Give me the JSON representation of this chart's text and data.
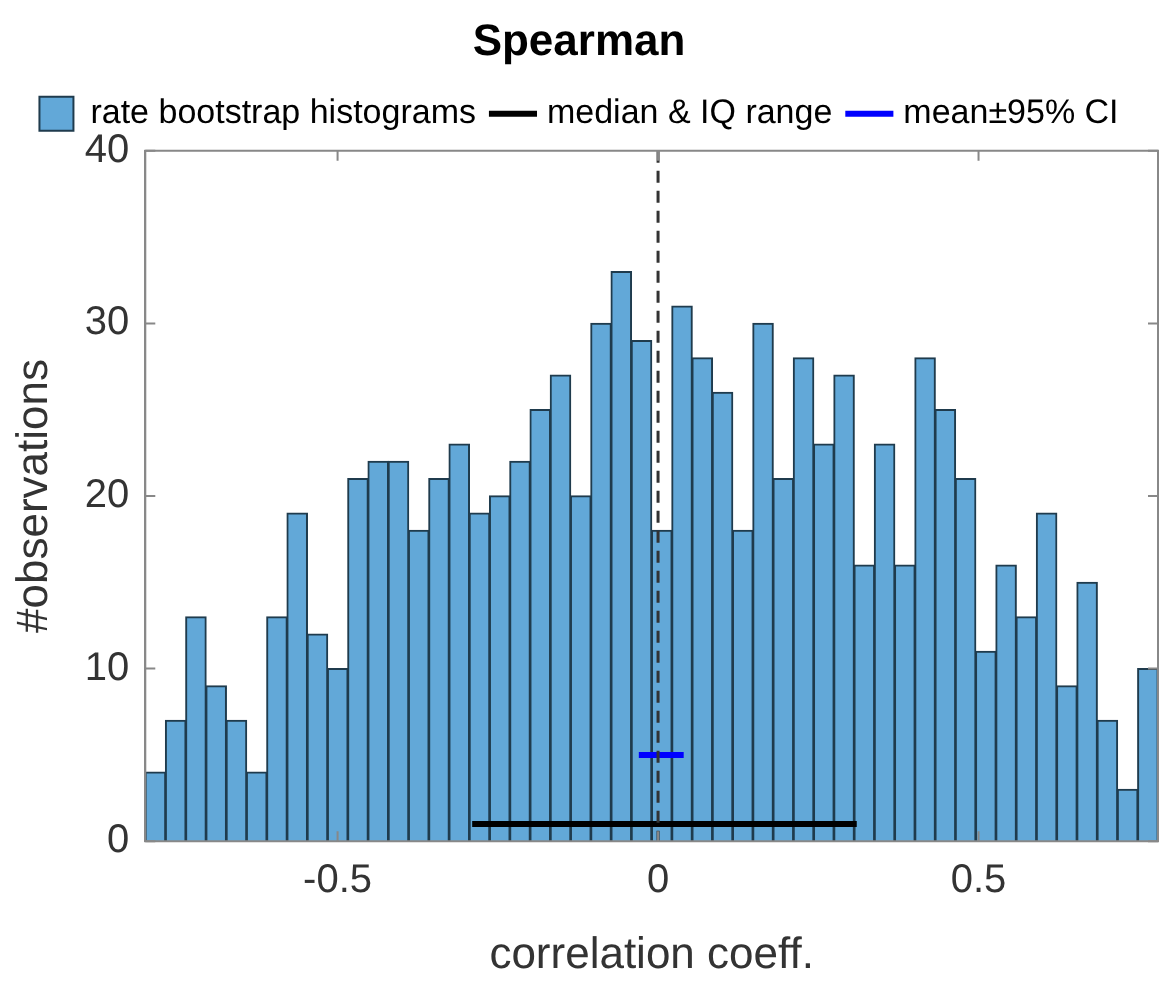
{
  "chart_data": {
    "type": "histogram",
    "title": "Spearman",
    "xlabel": "correlation coeff.",
    "ylabel": "#observations",
    "bins": [
      -0.8,
      -0.7684,
      -0.7368,
      -0.7052,
      -0.6736,
      -0.642,
      -0.6104,
      -0.5788,
      -0.5472,
      -0.5156,
      -0.484,
      -0.4524,
      -0.4208,
      -0.3892,
      -0.3576,
      -0.326,
      -0.2944,
      -0.2628,
      -0.2312,
      -0.1996,
      -0.168,
      -0.1364,
      -0.1048,
      -0.0732,
      -0.0416,
      -0.01,
      0.0216,
      0.0532,
      0.0848,
      0.1164,
      0.148,
      0.1796,
      0.2112,
      0.2428,
      0.2744,
      0.306,
      0.3376,
      0.3692,
      0.4008,
      0.4324,
      0.464,
      0.4956,
      0.5272,
      0.5588,
      0.5904,
      0.622,
      0.6536,
      0.6852,
      0.7168,
      0.7484,
      0.78
    ],
    "xlim": [
      -0.8,
      0.78
    ],
    "ylim": [
      0,
      40
    ],
    "xticks": [
      -0.5,
      0,
      0.5
    ],
    "yticks": [
      0,
      10,
      20,
      30,
      40
    ],
    "legend": "top",
    "grid": false,
    "series": [
      {
        "type": "histogram",
        "name": "rate bootstrap histograms",
        "color": "#62a8d8",
        "values": [
          4,
          7,
          13,
          9,
          7,
          4,
          13,
          19,
          12,
          10,
          21,
          22,
          22,
          18,
          21,
          23,
          19,
          20,
          22,
          25,
          27,
          20,
          30,
          33,
          29,
          18,
          31,
          28,
          26,
          18,
          30,
          21,
          28,
          23,
          27,
          16,
          23,
          16,
          28,
          25,
          21,
          11,
          16,
          13,
          19,
          9,
          15,
          7,
          3,
          10
        ]
      },
      {
        "type": "line",
        "name": "median & IQ range",
        "color": "#000000",
        "x": [
          -0.29,
          0,
          0.31
        ],
        "values": [
          1,
          1,
          1
        ],
        "marker": "none"
      },
      {
        "type": "line",
        "name": "mean±95% CI",
        "color": "#0000ff",
        "x": [
          -0.03,
          0.005,
          0.04
        ],
        "values": [
          5,
          5,
          5
        ],
        "marker": "none"
      }
    ],
    "ref_lines": [
      {
        "axis": "x",
        "value": 0,
        "color": "#333333",
        "line_style": "dashed"
      }
    ]
  }
}
